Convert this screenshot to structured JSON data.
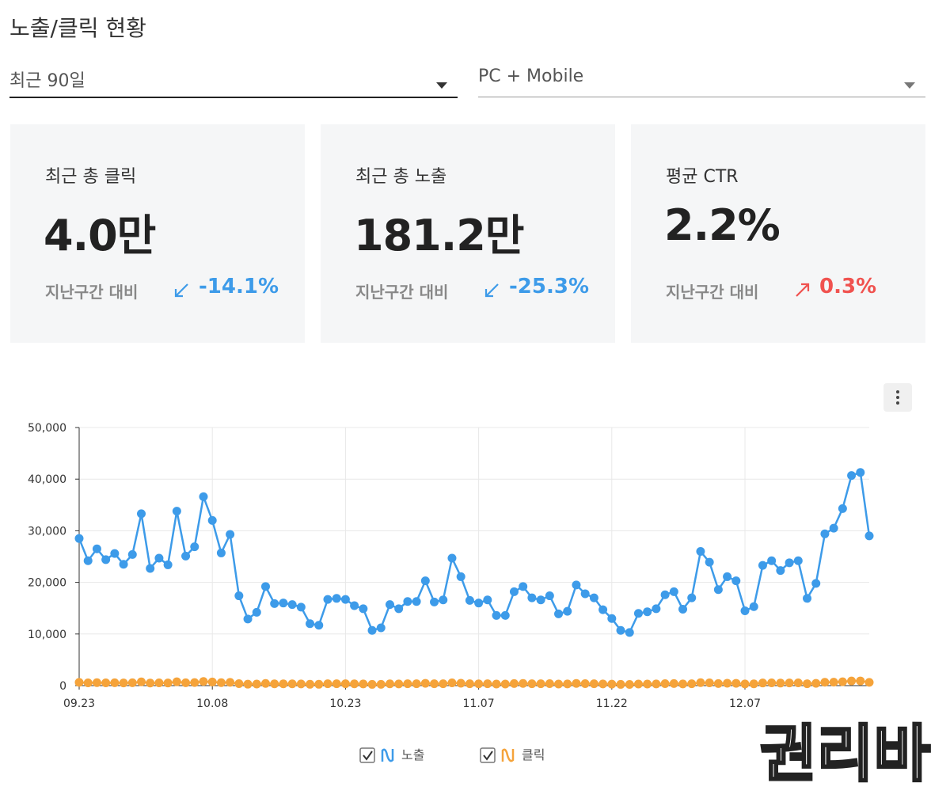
{
  "header": {
    "title": "노출/클릭 현황"
  },
  "filters": [
    {
      "value": "최근 90일"
    },
    {
      "value": "PC + Mobile"
    }
  ],
  "cards": [
    {
      "label": "최근 총 클릭",
      "value": "4.0만",
      "compare_label": "지난구간 대비",
      "change": "-14.1%",
      "direction": "down",
      "color": "#3d9be9"
    },
    {
      "label": "최근 총 노출",
      "value": "181.2만",
      "compare_label": "지난구간 대비",
      "change": "-25.3%",
      "direction": "down",
      "color": "#3d9be9"
    },
    {
      "label": "평균 CTR",
      "value": "2.2%",
      "compare_label": "지난구간 대비",
      "change": "0.3%",
      "direction": "up",
      "color": "#f0524f"
    }
  ],
  "watermark": "권리바",
  "chart_data": {
    "type": "line",
    "categories": [
      "09.23",
      null,
      null,
      null,
      null,
      null,
      null,
      null,
      null,
      null,
      null,
      null,
      null,
      null,
      null,
      "10.08",
      null,
      null,
      null,
      null,
      null,
      null,
      null,
      null,
      null,
      null,
      null,
      null,
      null,
      null,
      "10.23",
      null,
      null,
      null,
      null,
      null,
      null,
      null,
      null,
      null,
      null,
      null,
      null,
      null,
      null,
      "11.07",
      null,
      null,
      null,
      null,
      null,
      null,
      null,
      null,
      null,
      null,
      null,
      null,
      null,
      null,
      "11.22",
      null,
      null,
      null,
      null,
      null,
      null,
      null,
      null,
      null,
      null,
      null,
      null,
      null,
      null,
      "12.07",
      null,
      null,
      null,
      null,
      null,
      null,
      null,
      null,
      null,
      null,
      null,
      null,
      null,
      null
    ],
    "series": [
      {
        "name": "노출",
        "color": "#3d9be9",
        "values": [
          28500,
          24200,
          26500,
          24400,
          25600,
          23500,
          25400,
          33300,
          22700,
          24700,
          23400,
          33800,
          25100,
          26900,
          36600,
          32000,
          25700,
          29300,
          17400,
          12900,
          14200,
          19200,
          15900,
          16000,
          15700,
          15200,
          12000,
          11700,
          16700,
          16900,
          16700,
          15500,
          14900,
          10700,
          11200,
          15700,
          14900,
          16300,
          16300,
          20300,
          16200,
          16600,
          24700,
          21100,
          16500,
          16000,
          16600,
          13600,
          13600,
          18200,
          19200,
          17000,
          16600,
          17400,
          13900,
          14400,
          19500,
          17800,
          17000,
          14700,
          13000,
          10700,
          10300,
          14000,
          14300,
          14900,
          17600,
          18200,
          14800,
          17000,
          26000,
          23900,
          18600,
          21100,
          20300,
          14500,
          15300,
          23300,
          24200,
          22300,
          23800,
          24200,
          16900,
          19800,
          29400,
          30500,
          34300,
          40700,
          41300,
          29000
        ]
      },
      {
        "name": "클릭",
        "color": "#f5a33a",
        "values": [
          630,
          530,
          580,
          540,
          560,
          520,
          560,
          730,
          500,
          540,
          510,
          740,
          550,
          590,
          810,
          700,
          570,
          640,
          380,
          280,
          310,
          420,
          350,
          350,
          350,
          330,
          260,
          260,
          370,
          370,
          370,
          340,
          330,
          240,
          250,
          350,
          330,
          360,
          360,
          450,
          360,
          370,
          540,
          460,
          360,
          350,
          370,
          300,
          300,
          400,
          420,
          370,
          370,
          380,
          310,
          320,
          430,
          390,
          370,
          320,
          290,
          240,
          230,
          310,
          310,
          330,
          390,
          400,
          330,
          370,
          570,
          530,
          410,
          460,
          450,
          320,
          340,
          510,
          530,
          490,
          520,
          530,
          370,
          440,
          650,
          670,
          750,
          900,
          910,
          640
        ]
      }
    ],
    "ylim": [
      0,
      50000
    ],
    "yticks": [
      0,
      {
        "value": 10000,
        "label": "10,000"
      },
      {
        "value": 20000,
        "label": "20,000"
      },
      {
        "value": 30000,
        "label": "30,000"
      },
      {
        "value": 40000,
        "label": "40,000"
      },
      {
        "value": 50000,
        "label": "50,000"
      }
    ],
    "grid": true
  }
}
